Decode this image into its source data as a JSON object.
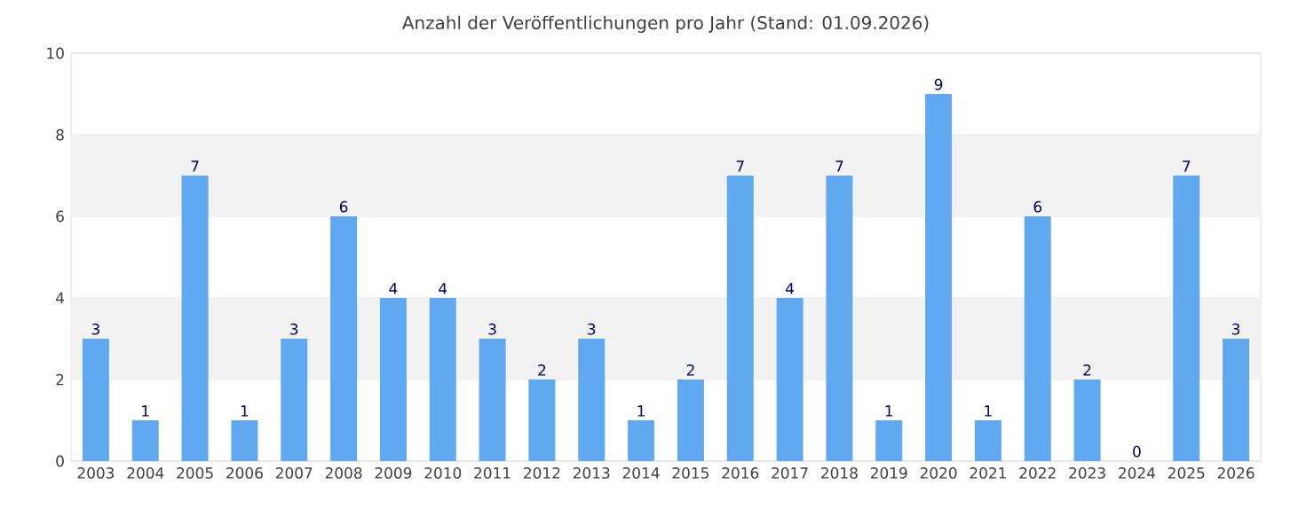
{
  "chart_data": {
    "type": "bar",
    "title": "Anzahl der Veröffentlichungen pro Jahr (Stand: 01.09.2026)",
    "categories": [
      "2003",
      "2004",
      "2005",
      "2006",
      "2007",
      "2008",
      "2009",
      "2010",
      "2011",
      "2012",
      "2013",
      "2014",
      "2015",
      "2016",
      "2017",
      "2018",
      "2019",
      "2020",
      "2021",
      "2022",
      "2023",
      "2024",
      "2025",
      "2026"
    ],
    "values": [
      3,
      1,
      7,
      1,
      3,
      6,
      4,
      4,
      3,
      2,
      3,
      1,
      2,
      7,
      4,
      7,
      1,
      9,
      1,
      6,
      2,
      0,
      7,
      3
    ],
    "color": "#60a8f0",
    "ylim": [
      0,
      10
    ],
    "yticks": [
      0,
      2,
      4,
      6,
      8,
      10
    ],
    "grid": "y",
    "data_labels": true,
    "bands": [
      {
        "axis": "y",
        "from": 2,
        "to": 4,
        "color": "#f2f2f2"
      },
      {
        "axis": "y",
        "from": 6,
        "to": 8,
        "color": "#f2f2f2"
      }
    ]
  }
}
